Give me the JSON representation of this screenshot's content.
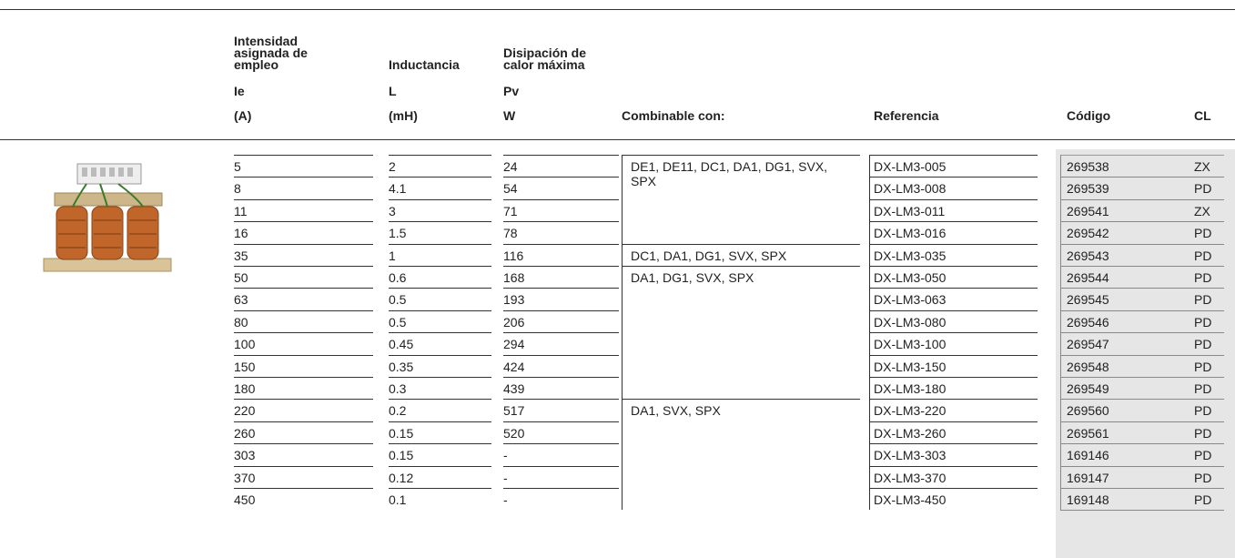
{
  "table": {
    "headers": {
      "ie": {
        "title": "Intensidad asignada de empleo",
        "symbol": "Ie",
        "unit": "(A)"
      },
      "l": {
        "title": "Inductancia",
        "symbol": "L",
        "unit": "(mH)"
      },
      "pv": {
        "title": "Disipación de calor máxima",
        "symbol": "Pv",
        "unit": "W"
      },
      "combinable": "Combinable con:",
      "ref": "Referencia",
      "code": "Código",
      "cl": "CL"
    },
    "rows": [
      {
        "ie": "5",
        "l": "2",
        "pv": "24",
        "combinable": "DE1, DE11, DC1, DA1, DG1, SVX, SPX",
        "ref": "DX-LM3-005",
        "code": "269538",
        "cl": "ZX"
      },
      {
        "ie": "8",
        "l": "4.1",
        "pv": "54",
        "ref": "DX-LM3-008",
        "code": "269539",
        "cl": "PD"
      },
      {
        "ie": "11",
        "l": "3",
        "pv": "71",
        "ref": "DX-LM3-011",
        "code": "269541",
        "cl": "ZX"
      },
      {
        "ie": "16",
        "l": "1.5",
        "pv": "78",
        "ref": "DX-LM3-016",
        "code": "269542",
        "cl": "PD"
      },
      {
        "ie": "35",
        "l": "1",
        "pv": "116",
        "combinable": "DC1, DA1, DG1, SVX, SPX",
        "ref": "DX-LM3-035",
        "code": "269543",
        "cl": "PD"
      },
      {
        "ie": "50",
        "l": "0.6",
        "pv": "168",
        "combinable": "DA1, DG1, SVX, SPX",
        "ref": "DX-LM3-050",
        "code": "269544",
        "cl": "PD"
      },
      {
        "ie": "63",
        "l": "0.5",
        "pv": "193",
        "ref": "DX-LM3-063",
        "code": "269545",
        "cl": "PD"
      },
      {
        "ie": "80",
        "l": "0.5",
        "pv": "206",
        "ref": "DX-LM3-080",
        "code": "269546",
        "cl": "PD"
      },
      {
        "ie": "100",
        "l": "0.45",
        "pv": "294",
        "ref": "DX-LM3-100",
        "code": "269547",
        "cl": "PD"
      },
      {
        "ie": "150",
        "l": "0.35",
        "pv": "424",
        "ref": "DX-LM3-150",
        "code": "269548",
        "cl": "PD"
      },
      {
        "ie": "180",
        "l": "0.3",
        "pv": "439",
        "ref": "DX-LM3-180",
        "code": "269549",
        "cl": "PD"
      },
      {
        "ie": "220",
        "l": "0.2",
        "pv": "517",
        "combinable": "DA1, SVX, SPX",
        "ref": "DX-LM3-220",
        "code": "269560",
        "cl": "PD"
      },
      {
        "ie": "260",
        "l": "0.15",
        "pv": "520",
        "ref": "DX-LM3-260",
        "code": "269561",
        "cl": "PD"
      },
      {
        "ie": "303",
        "l": "0.15",
        "pv": "-",
        "ref": "DX-LM3-303",
        "code": "169146",
        "cl": "PD"
      },
      {
        "ie": "370",
        "l": "0.12",
        "pv": "-",
        "ref": "DX-LM3-370",
        "code": "169147",
        "cl": "PD"
      },
      {
        "ie": "450",
        "l": "0.1",
        "pv": "-",
        "ref": "DX-LM3-450",
        "code": "169148",
        "cl": "PD"
      }
    ]
  }
}
